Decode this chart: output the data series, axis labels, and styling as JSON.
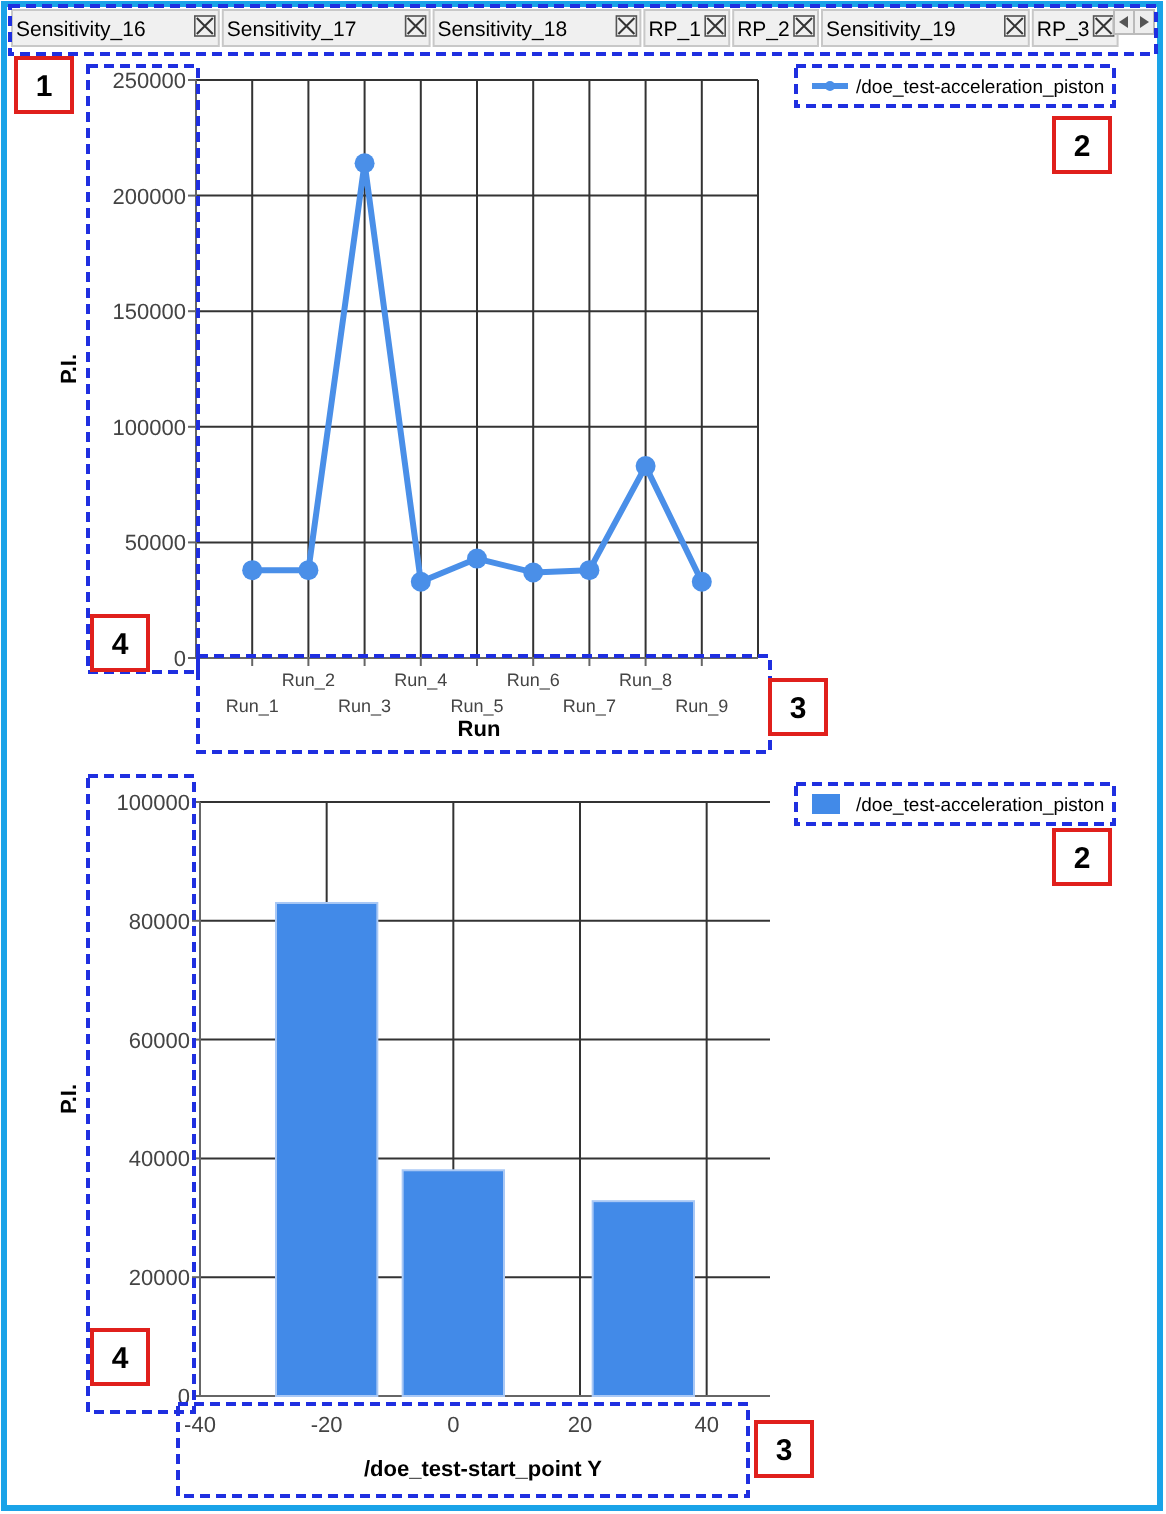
{
  "chart_data": [
    {
      "type": "other",
      "categories": [
        "Sensitivity_16",
        "Sensitivity_17",
        "Sensitivity_18",
        "RP_1",
        "RP_2",
        "Sensitivity_19",
        "RP_3"
      ],
      "annotations": [
        "1"
      ]
    },
    {
      "type": "line",
      "categories": [
        "Run_1",
        "Run_2",
        "Run_3",
        "Run_4",
        "Run_5",
        "Run_6",
        "Run_7",
        "Run_8",
        "Run_9"
      ],
      "xlabel": "Run",
      "ylabel": "P.I.",
      "series": [
        {
          "name": "/doe_test-acceleration_piston",
          "color": "#4a8fe8",
          "values": [
            38000,
            38000,
            214000,
            33000,
            43000,
            37000,
            38000,
            83000,
            33000
          ]
        }
      ],
      "ylim": [
        0,
        250000
      ],
      "yticks": [
        0,
        50000,
        100000,
        150000,
        200000,
        250000
      ],
      "grid": true,
      "legend": "top right",
      "marker": "circle",
      "annotations": [
        "2",
        "3",
        "4"
      ]
    },
    {
      "type": "bar",
      "x": [
        -20,
        0,
        30
      ],
      "xlabel": "/doe_test-start_point Y",
      "ylabel": "P.I.",
      "series": [
        {
          "name": "/doe_test-acceleration_piston",
          "color": "#428ae8",
          "values": [
            83000,
            38000,
            32800
          ]
        }
      ],
      "xlim": [
        -40,
        50
      ],
      "xticks": [
        -40,
        -20,
        0,
        20,
        40
      ],
      "ylim": [
        0,
        100000
      ],
      "yticks": [
        0,
        20000,
        40000,
        60000,
        80000,
        100000
      ],
      "grid": true,
      "legend": "top right",
      "annotations": [
        "2",
        "3",
        "4"
      ]
    }
  ]
}
